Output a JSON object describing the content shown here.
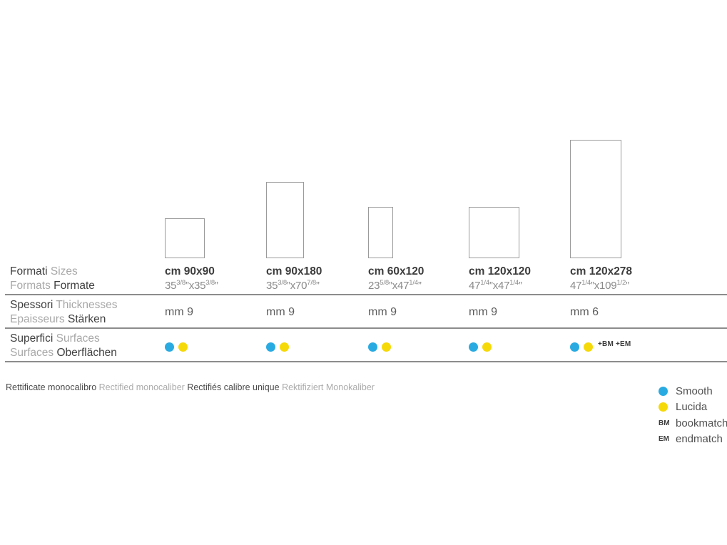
{
  "colors": {
    "smooth_blue": "#29abe2",
    "lucida_yellow": "#f6d909",
    "dark_text": "#3f3f3f",
    "muted_text": "#a8a8a8",
    "rule_gray": "#8c8c8c",
    "tile_border": "#9b9b9b"
  },
  "row_headers": {
    "formats": {
      "it": "Formati",
      "en": "Sizes",
      "fr": "Formats",
      "de": "Formate"
    },
    "thickness": {
      "it": "Spessori",
      "en": "Thicknesses",
      "fr": "Epaisseurs",
      "de": "Stärken"
    },
    "surfaces": {
      "it": "Superfici",
      "en": "Surfaces",
      "fr": "Surfaces",
      "de": "Oberflächen"
    }
  },
  "formats": [
    {
      "cm": "cm 90x90",
      "inch_tokens": [
        {
          "t": "35"
        },
        {
          "t": "3/8",
          "sup": true
        },
        {
          "t": "”x35"
        },
        {
          "t": "3/8",
          "sup": true
        },
        {
          "t": "”"
        }
      ],
      "thickness": "mm 9",
      "surfaces": [
        "Smooth",
        "Lucida"
      ],
      "surface_note": ""
    },
    {
      "cm": "cm 90x180",
      "inch_tokens": [
        {
          "t": "35"
        },
        {
          "t": "3/8",
          "sup": true
        },
        {
          "t": "”x70"
        },
        {
          "t": "7/8",
          "sup": true
        },
        {
          "t": "”"
        }
      ],
      "thickness": "mm 9",
      "surfaces": [
        "Smooth",
        "Lucida"
      ],
      "surface_note": ""
    },
    {
      "cm": "cm 60x120",
      "inch_tokens": [
        {
          "t": "23"
        },
        {
          "t": "5/8",
          "sup": true
        },
        {
          "t": "”x47"
        },
        {
          "t": "1/4",
          "sup": true
        },
        {
          "t": "”"
        }
      ],
      "thickness": "mm 9",
      "surfaces": [
        "Smooth",
        "Lucida"
      ],
      "surface_note": ""
    },
    {
      "cm": "cm 120x120",
      "inch_tokens": [
        {
          "t": "47"
        },
        {
          "t": "1/4",
          "sup": true
        },
        {
          "t": "”x47"
        },
        {
          "t": "1/4",
          "sup": true
        },
        {
          "t": "”"
        }
      ],
      "thickness": "mm 9",
      "surfaces": [
        "Smooth",
        "Lucida"
      ],
      "surface_note": ""
    },
    {
      "cm": "cm 120x278",
      "inch_tokens": [
        {
          "t": "47"
        },
        {
          "t": "1/4",
          "sup": true
        },
        {
          "t": "”x109"
        },
        {
          "t": "1/2",
          "sup": true
        },
        {
          "t": "”"
        }
      ],
      "thickness": "mm 6",
      "surfaces": [
        "Smooth",
        "Lucida"
      ],
      "surface_note": "+BM +EM"
    }
  ],
  "footnote": {
    "it": "Rettificate monocalibro",
    "en": "Rectified monocaliber",
    "fr": "Rectifiés calibre unique",
    "de": "Rektifiziert Monokaliber"
  },
  "legend": {
    "smooth": "Smooth",
    "lucida": "Lucida",
    "bm_symbol": "BM",
    "bookmatch": "bookmatch",
    "em_symbol": "EM",
    "endmatch": "endmatch"
  }
}
